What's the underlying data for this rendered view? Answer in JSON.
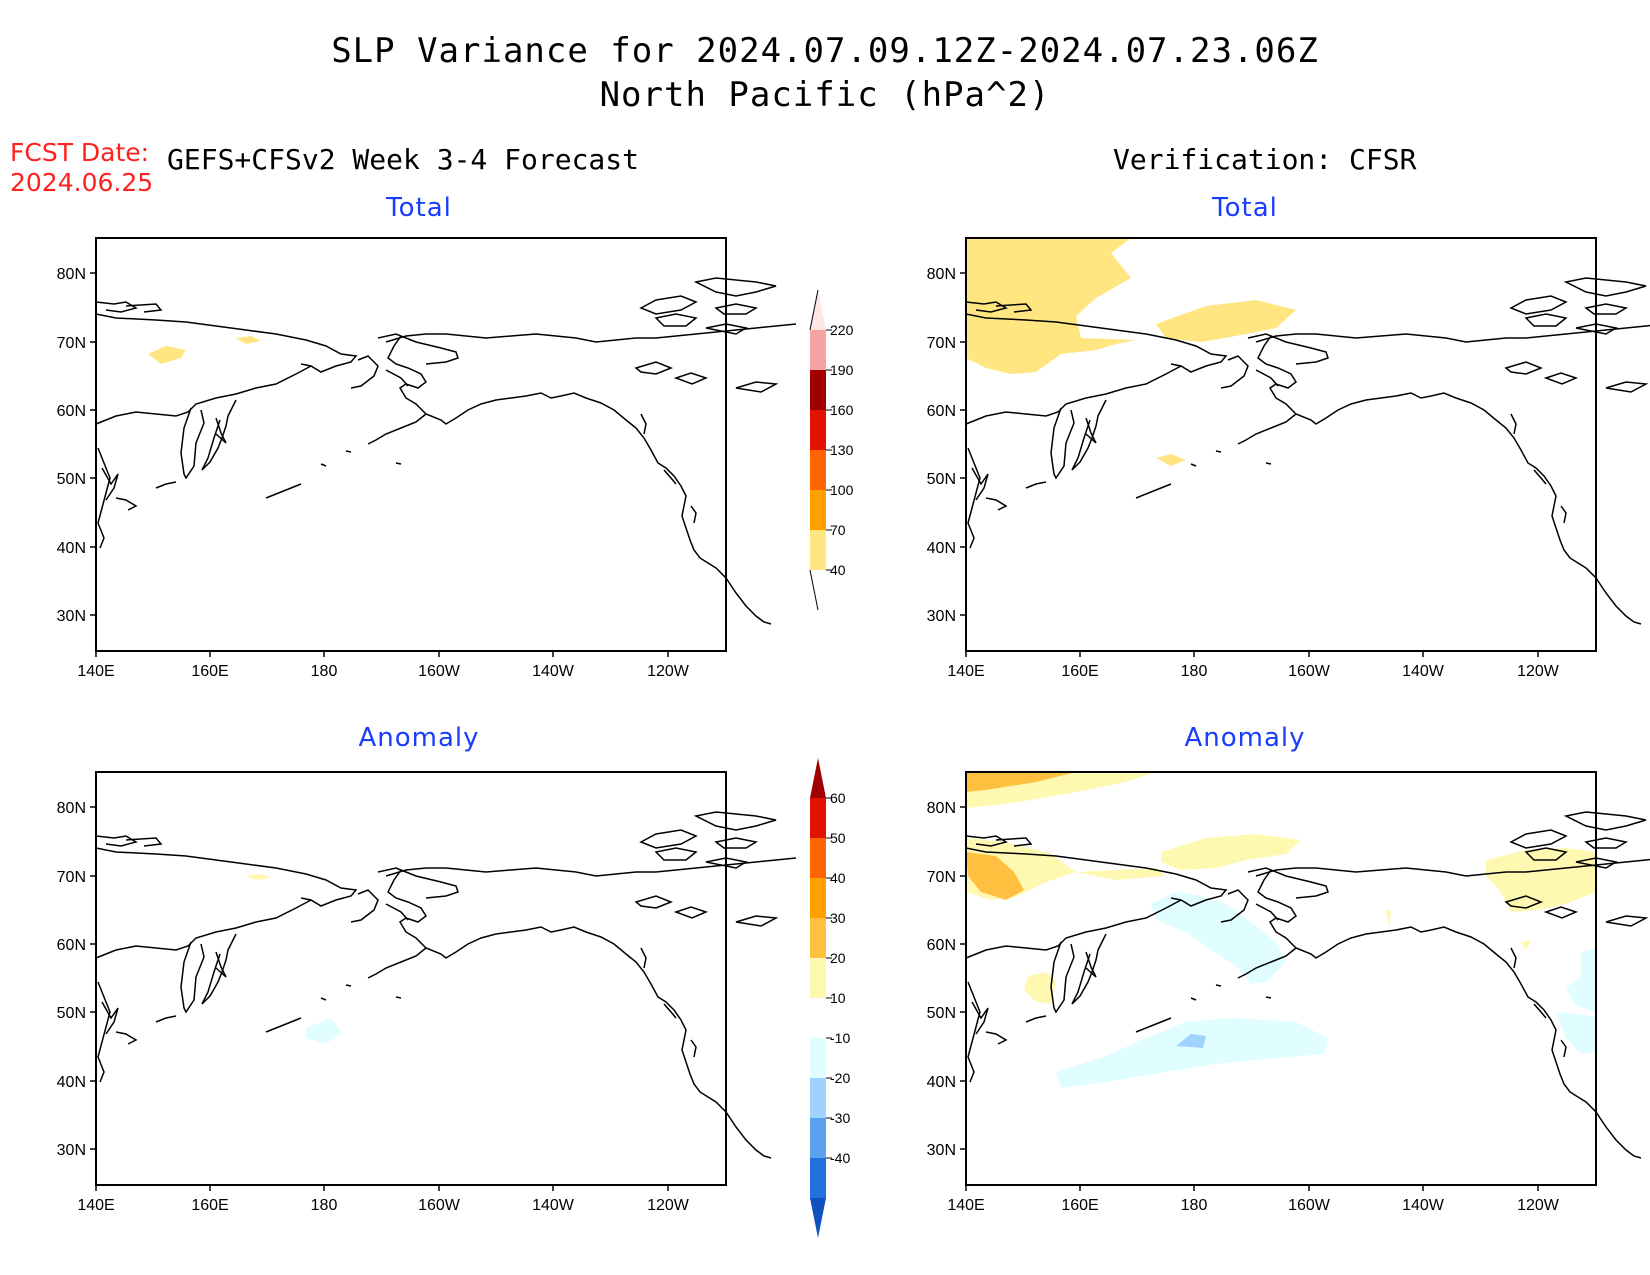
{
  "header": {
    "title_line1": "SLP Variance for 2024.07.09.12Z-2024.07.23.06Z",
    "title_line2": "North Pacific (hPa^2)"
  },
  "fcst": {
    "label": "FCST Date:",
    "date": "2024.06.25"
  },
  "left_heading": "GEFS+CFSv2 Week 3-4 Forecast",
  "right_heading": "Verification: CFSR",
  "panels": {
    "top_left_title": "Total",
    "top_right_title": "Total",
    "bottom_left_title": "Anomaly",
    "bottom_right_title": "Anomaly"
  },
  "axes": {
    "lat_labels": [
      "80N",
      "70N",
      "60N",
      "50N",
      "40N",
      "30N"
    ],
    "lon_labels": [
      "140E",
      "160E",
      "180",
      "160W",
      "140W",
      "120W"
    ]
  },
  "total_colorbar": {
    "labels": [
      "220",
      "190",
      "160",
      "130",
      "100",
      "70",
      "40"
    ],
    "colors": [
      "#f5a3a3",
      "#a00000",
      "#e01400",
      "#ff6400",
      "#ffa000",
      "#ffe680"
    ]
  },
  "anomaly_colorbar": {
    "labels": [
      "60",
      "50",
      "40",
      "30",
      "20",
      "10",
      "-10",
      "-20",
      "-30",
      "-40"
    ],
    "colors": [
      "#a00000",
      "#e01400",
      "#ff6400",
      "#ffa000",
      "#ffc040",
      "#fff8b0",
      "#ffffff",
      "#e0fdff",
      "#a0d2ff",
      "#5ca0f0",
      "#2070e0",
      "#1050c0"
    ]
  }
}
